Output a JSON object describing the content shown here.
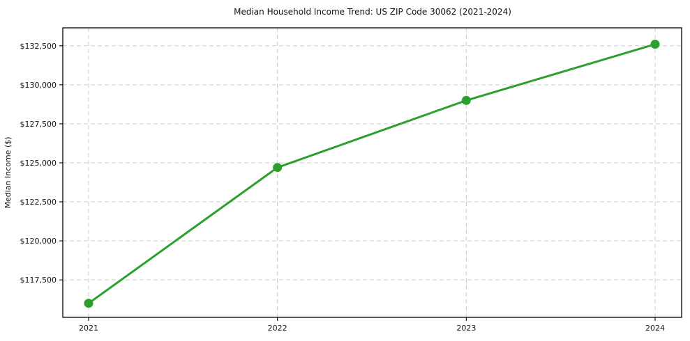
{
  "chart_data": {
    "type": "line",
    "title": "Median Household Income Trend: US ZIP Code 30062 (2021-2024)",
    "xlabel": "",
    "ylabel": "Median Income ($)",
    "categories": [
      "2021",
      "2022",
      "2023",
      "2024"
    ],
    "series": [
      {
        "name": "Median Household Income",
        "values": [
          116000,
          124700,
          129000,
          132600
        ],
        "color": "#2ca02c",
        "marker": "circle"
      }
    ],
    "y_ticks": [
      117500,
      120000,
      122500,
      125000,
      127500,
      130000,
      132500
    ],
    "y_tick_labels": [
      "$117,500",
      "$120,000",
      "$122,500",
      "$125,000",
      "$127,500",
      "$130,000",
      "$132,500"
    ],
    "ylim": [
      115100,
      133650
    ],
    "grid": "dashed, both axes",
    "legend_position": "none",
    "colors": {
      "line": "#2ca02c",
      "marker": "#2ca02c",
      "grid": "#cccccc",
      "axis": "#000000",
      "background": "#ffffff"
    }
  }
}
